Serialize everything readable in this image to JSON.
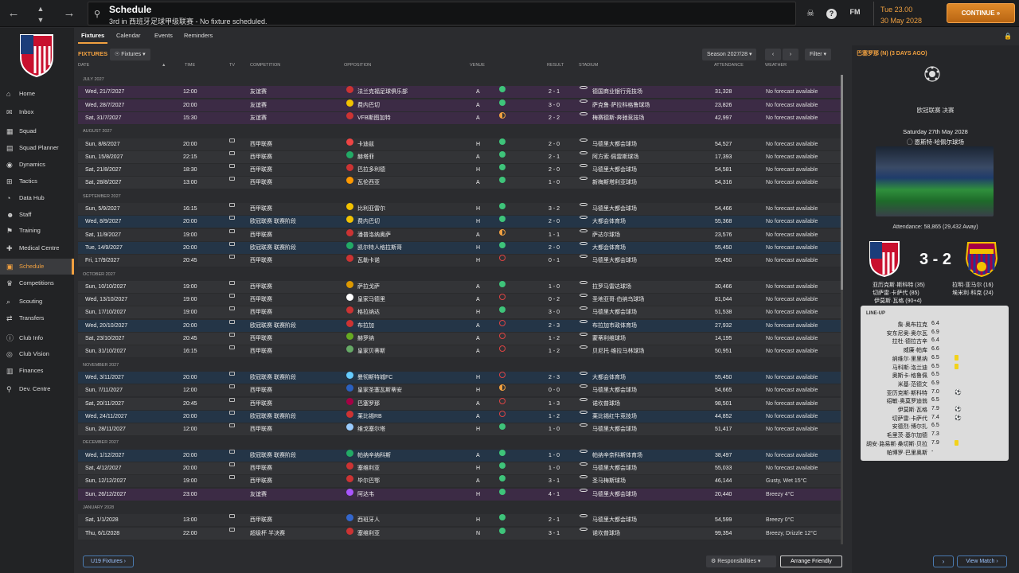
{
  "header": {
    "title": "Schedule",
    "subtitle": "3rd in 西班牙足球甲级联赛 - No fixture scheduled.",
    "date_time": "Tue 23.00",
    "date": "30 May 2028",
    "continue": "CONTINUE",
    "fm": "FM"
  },
  "sidebar": {
    "items": [
      {
        "label": "Home",
        "icon": "home-icon"
      },
      {
        "label": "Inbox",
        "icon": "inbox-icon"
      },
      {
        "label": "Squad",
        "icon": "shirt-icon"
      },
      {
        "label": "Squad Planner",
        "icon": "planner-icon"
      },
      {
        "label": "Dynamics",
        "icon": "dynamics-icon"
      },
      {
        "label": "Tactics",
        "icon": "tactics-icon"
      },
      {
        "label": "Data Hub",
        "icon": "datahub-icon"
      },
      {
        "label": "Staff",
        "icon": "staff-icon"
      },
      {
        "label": "Training",
        "icon": "training-icon"
      },
      {
        "label": "Medical Centre",
        "icon": "medical-icon"
      },
      {
        "label": "Schedule",
        "icon": "calendar-icon"
      },
      {
        "label": "Competitions",
        "icon": "trophy-icon"
      },
      {
        "label": "Scouting",
        "icon": "scouting-icon"
      },
      {
        "label": "Transfers",
        "icon": "transfers-icon"
      },
      {
        "label": "Club Info",
        "icon": "clubinfo-icon"
      },
      {
        "label": "Club Vision",
        "icon": "vision-icon"
      },
      {
        "label": "Finances",
        "icon": "finances-icon"
      },
      {
        "label": "Dev. Centre",
        "icon": "devcentre-icon"
      }
    ]
  },
  "tabs": [
    "Fixtures",
    "Calendar",
    "Events",
    "Reminders"
  ],
  "toolbar": {
    "section": "FIXTURES",
    "view": "Fixtures",
    "season": "Season 2027/28",
    "filter": "Filter"
  },
  "columns": {
    "date": "DATE",
    "time": "TIME",
    "tv": "TV",
    "competition": "COMPETITION",
    "opposition": "OPPOSITION",
    "venue": "VENUE",
    "result": "RESULT",
    "stadium": "STADIUM",
    "attendance": "ATTENDANCE",
    "weather": "WEATHER"
  },
  "months": [
    "JULY 2027",
    "AUGUST 2027",
    "SEPTEMBER 2027",
    "OCTOBER 2027",
    "NOVEMBER 2027",
    "DECEMBER 2027",
    "JANUARY 2028"
  ],
  "fixtures": [
    {
      "date": "Wed, 21/7/2027",
      "time": "12:00",
      "comp": "友谊赛",
      "opp": "法兰克福足球俱乐部",
      "venue": "A",
      "result": "2 - 1",
      "stadium": "德国商业银行竞技场",
      "att": "31,328",
      "weather": "No forecast available"
    },
    {
      "date": "Wed, 28/7/2027",
      "time": "20:00",
      "comp": "友谊赛",
      "opp": "费内巴切",
      "venue": "A",
      "result": "3 - 0",
      "stadium": "萨克鲁·萨拉科格鲁球场",
      "att": "23,826",
      "weather": "No forecast available"
    },
    {
      "date": "Sat, 31/7/2027",
      "time": "15:30",
      "comp": "友谊赛",
      "opp": "VFB斯图加特",
      "venue": "A",
      "result": "2 - 2",
      "stadium": "梅赛德斯-奔驰竞技场",
      "att": "42,997",
      "weather": "No forecast available"
    },
    {
      "date": "Sun, 8/8/2027",
      "time": "20:00",
      "comp": "西甲联赛",
      "opp": "卡迪兹",
      "venue": "H",
      "result": "2 - 0",
      "stadium": "马德里大都会球场",
      "att": "54,527",
      "weather": "No forecast available"
    },
    {
      "date": "Sun, 15/8/2027",
      "time": "22:15",
      "comp": "西甲联赛",
      "opp": "赫塔菲",
      "venue": "A",
      "result": "2 - 1",
      "stadium": "阿方索·佩雷斯球场",
      "att": "17,393",
      "weather": "No forecast available"
    },
    {
      "date": "Sat, 21/8/2027",
      "time": "18:30",
      "comp": "西甲联赛",
      "opp": "巴拉多利德",
      "venue": "H",
      "result": "2 - 0",
      "stadium": "马德里大都会球场",
      "att": "54,581",
      "weather": "No forecast available"
    },
    {
      "date": "Sat, 28/8/2027",
      "time": "13:00",
      "comp": "西甲联赛",
      "opp": "瓦伦西亚",
      "venue": "A",
      "result": "1 - 0",
      "stadium": "新梅斯塔利亚球场",
      "att": "54,316",
      "weather": "No forecast available"
    },
    {
      "date": "Sun, 5/9/2027",
      "time": "16:15",
      "comp": "西甲联赛",
      "opp": "比利亚雷尔",
      "venue": "H",
      "result": "3 - 2",
      "stadium": "马德里大都会球场",
      "att": "54,466",
      "weather": "No forecast available"
    },
    {
      "date": "Wed, 8/9/2027",
      "time": "20:00",
      "comp": "欧冠联赛 联赛阶段",
      "opp": "费内巴切",
      "venue": "H",
      "result": "2 - 0",
      "stadium": "大都会体育场",
      "att": "55,368",
      "weather": "No forecast available"
    },
    {
      "date": "Sat, 11/9/2027",
      "time": "19:00",
      "comp": "西甲联赛",
      "opp": "潘普洛纳奥萨",
      "venue": "A",
      "result": "1 - 1",
      "stadium": "萨达尔球场",
      "att": "23,576",
      "weather": "No forecast available"
    },
    {
      "date": "Tue, 14/9/2027",
      "time": "20:00",
      "comp": "欧冠联赛 联赛阶段",
      "opp": "凯尔特人格拉斯哥",
      "venue": "H",
      "result": "2 - 0",
      "stadium": "大都会体育场",
      "att": "55,450",
      "weather": "No forecast available"
    },
    {
      "date": "Fri, 17/9/2027",
      "time": "20:45",
      "comp": "西甲联赛",
      "opp": "瓦勒卡诺",
      "venue": "H",
      "result": "0 - 1",
      "stadium": "马德里大都会球场",
      "att": "55,450",
      "weather": "No forecast available"
    },
    {
      "date": "Sun, 10/10/2027",
      "time": "19:00",
      "comp": "西甲联赛",
      "opp": "萨拉戈萨",
      "venue": "A",
      "result": "1 - 0",
      "stadium": "拉罗马雷达球场",
      "att": "30,466",
      "weather": "No forecast available"
    },
    {
      "date": "Wed, 13/10/2027",
      "time": "19:00",
      "comp": "西甲联赛",
      "opp": "皇家马德里",
      "venue": "A",
      "result": "0 - 2",
      "stadium": "圣地亚哥·伯纳乌球场",
      "att": "81,044",
      "weather": "No forecast available"
    },
    {
      "date": "Sun, 17/10/2027",
      "time": "19:00",
      "comp": "西甲联赛",
      "opp": "格拉纳达",
      "venue": "H",
      "result": "3 - 0",
      "stadium": "马德里大都会球场",
      "att": "51,538",
      "weather": "No forecast available"
    },
    {
      "date": "Wed, 20/10/2027",
      "time": "20:00",
      "comp": "欧冠联赛 联赛阶段",
      "opp": "布拉加",
      "venue": "A",
      "result": "2 - 3",
      "stadium": "布拉加市政体育场",
      "att": "27,932",
      "weather": "No forecast available"
    },
    {
      "date": "Sat, 23/10/2027",
      "time": "20:45",
      "comp": "西甲联赛",
      "opp": "赫罗纳",
      "venue": "A",
      "result": "1 - 2",
      "stadium": "蒙蒂利维球场",
      "att": "14,195",
      "weather": "No forecast available"
    },
    {
      "date": "Sun, 31/10/2027",
      "time": "16:15",
      "comp": "西甲联赛",
      "opp": "皇家贝蒂斯",
      "venue": "A",
      "result": "1 - 2",
      "stadium": "贝尼托·维拉马林球场",
      "att": "50,951",
      "weather": "No forecast available"
    },
    {
      "date": "Wed, 3/11/2027",
      "time": "20:00",
      "comp": "欧冠联赛 联赛阶段",
      "opp": "曼彻斯特城FC",
      "venue": "H",
      "result": "2 - 3",
      "stadium": "大都会体育场",
      "att": "55,450",
      "weather": "No forecast available"
    },
    {
      "date": "Sun, 7/11/2027",
      "time": "12:00",
      "comp": "西甲联赛",
      "opp": "皇家圣塞瓦斯蒂安",
      "venue": "H",
      "result": "0 - 0",
      "stadium": "马德里大都会球场",
      "att": "54,665",
      "weather": "No forecast available"
    },
    {
      "date": "Sat, 20/11/2027",
      "time": "20:45",
      "comp": "西甲联赛",
      "opp": "巴塞罗那",
      "venue": "A",
      "result": "1 - 3",
      "stadium": "诺坎普球场",
      "att": "98,501",
      "weather": "No forecast available"
    },
    {
      "date": "Wed, 24/11/2027",
      "time": "20:00",
      "comp": "欧冠联赛 联赛阶段",
      "opp": "莱比锡RB",
      "venue": "A",
      "result": "1 - 2",
      "stadium": "莱比锡红牛竞技场",
      "att": "44,852",
      "weather": "No forecast available"
    },
    {
      "date": "Sun, 28/11/2027",
      "time": "12:00",
      "comp": "西甲联赛",
      "opp": "维戈塞尔塔",
      "venue": "H",
      "result": "1 - 0",
      "stadium": "马德里大都会球场",
      "att": "51,417",
      "weather": "No forecast available"
    },
    {
      "date": "Wed, 1/12/2027",
      "time": "20:00",
      "comp": "欧冠联赛 联赛阶段",
      "opp": "帕纳辛纳科斯",
      "venue": "A",
      "result": "1 - 0",
      "stadium": "帕纳辛奈科斯体育场",
      "att": "38,497",
      "weather": "No forecast available"
    },
    {
      "date": "Sat, 4/12/2027",
      "time": "20:00",
      "comp": "西甲联赛",
      "opp": "塞维利亚",
      "venue": "H",
      "result": "1 - 0",
      "stadium": "马德里大都会球场",
      "att": "55,033",
      "weather": "No forecast available"
    },
    {
      "date": "Sun, 12/12/2027",
      "time": "19:00",
      "comp": "西甲联赛",
      "opp": "毕尔巴鄂",
      "venue": "A",
      "result": "3 - 1",
      "stadium": "圣马梅斯球场",
      "att": "46,144",
      "weather": "Gusty, Wet 15°C"
    },
    {
      "date": "Sun, 26/12/2027",
      "time": "23:00",
      "comp": "友谊赛",
      "opp": "阿达韦",
      "venue": "H",
      "result": "4 - 1",
      "stadium": "马德里大都会球场",
      "att": "20,440",
      "weather": "Breezy 4°C"
    },
    {
      "date": "Sat, 1/1/2028",
      "time": "13:00",
      "comp": "西甲联赛",
      "opp": "西班牙人",
      "venue": "H",
      "result": "2 - 1",
      "stadium": "马德里大都会球场",
      "att": "54,599",
      "weather": "Breezy 0°C"
    },
    {
      "date": "Thu, 6/1/2028",
      "time": "22:00",
      "comp": "超级杯 半决赛",
      "opp": "塞维利亚",
      "venue": "N",
      "result": "3 - 1",
      "stadium": "诺坎普球场",
      "att": "99,354",
      "weather": "Breezy, Drizzle 12°C"
    }
  ],
  "bottom": {
    "u19": "U19 Fixtures",
    "responsibilities": "Responsibilities",
    "arrange": "Arrange Friendly"
  },
  "right_panel": {
    "title": "巴塞罗那 (N) (3 DAYS AGO)",
    "competition_text": "欧冠联赛 决赛",
    "date": "Saturday 27th May 2028",
    "stadium": "恩斯特·哈佩尔球场",
    "attendance": "Attendance: 58,865 (29,432 Away)",
    "score": "3 - 2",
    "home_scorers": [
      "亚历克斯·斯科特 (35)",
      "切萨雷·卡萨代 (85)",
      "伊莫斯·瓦格 (90+4)"
    ],
    "away_scorers": [
      "拉明·亚马尔 (16)",
      "埃米利·科克 (24)"
    ],
    "lineup_title": "LINE-UP",
    "lineup": [
      {
        "name": "詹·奥布拉克",
        "rating": "6.4",
        "extra": ""
      },
      {
        "name": "安东尼奥·奥尔瓦",
        "rating": "6.9",
        "extra": ""
      },
      {
        "name": "拉杜·德拉古辛",
        "rating": "6.4",
        "extra": ""
      },
      {
        "name": "威廉·帕库",
        "rating": "6.6",
        "extra": ""
      },
      {
        "name": "纳维尔·里里纳",
        "rating": "6.5",
        "extra": "yellow"
      },
      {
        "name": "马科斯·洛兰迪",
        "rating": "6.5",
        "extra": "yellow"
      },
      {
        "name": "奥斯卡·格鲁佩",
        "rating": "6.5",
        "extra": ""
      },
      {
        "name": "米基·范德文",
        "rating": "6.9",
        "extra": ""
      },
      {
        "name": "亚历克斯·斯科特",
        "rating": "7.0",
        "extra": "ball"
      },
      {
        "name": "绍敏·奥莫罗迪翁",
        "rating": "6.5",
        "extra": ""
      },
      {
        "name": "伊莫斯·瓦格",
        "rating": "7.9",
        "extra": "ball"
      },
      {
        "name": "切萨雷·卡萨代",
        "rating": "7.4",
        "extra": "ball"
      },
      {
        "name": "安德烈·博尔扎",
        "rating": "6.5",
        "extra": ""
      },
      {
        "name": "毛里茨·基尔加德",
        "rating": "7.3",
        "extra": ""
      },
      {
        "name": "胡安·路易斯·桑切斯·贝拉",
        "rating": "7.9",
        "extra": "yellow"
      },
      {
        "name": "帕博罗·巴里奥斯",
        "rating": "-",
        "extra": ""
      }
    ],
    "prev": "›",
    "view_match": "View Match"
  },
  "colors": {
    "accent": "#f0a040",
    "win": "#3ec47a",
    "loss": "#dd4444"
  }
}
